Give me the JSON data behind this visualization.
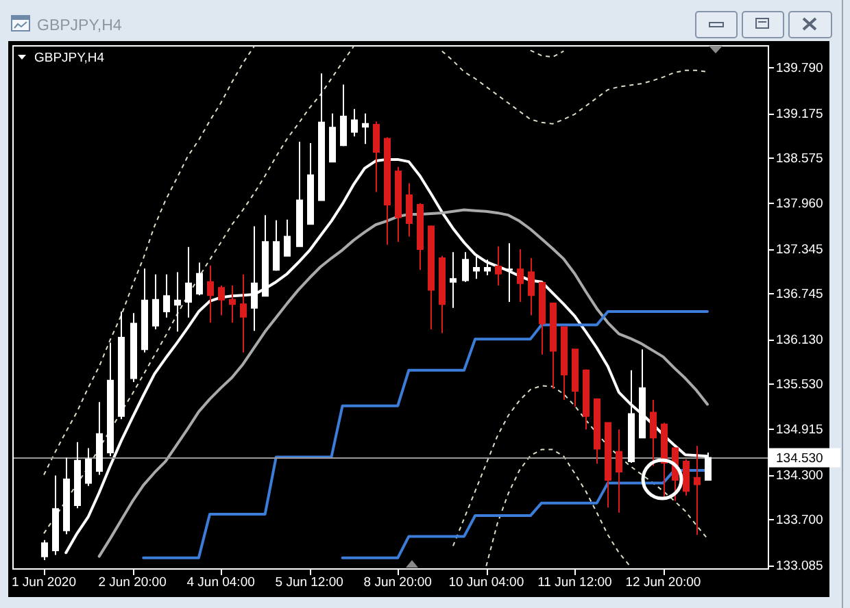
{
  "chart_data": {
    "type": "candlestick",
    "title": "GBPJPY,H4",
    "subtitle": "GBPJPY,H4",
    "categories": [
      "1 Jun 2020",
      null,
      null,
      null,
      null,
      null,
      null,
      null,
      "2 Jun 20:00",
      null,
      null,
      null,
      null,
      null,
      null,
      null,
      "4 Jun 04:00",
      null,
      null,
      null,
      null,
      null,
      null,
      null,
      "5 Jun 12:00",
      null,
      null,
      null,
      null,
      null,
      null,
      null,
      "8 Jun 20:00",
      null,
      null,
      null,
      null,
      null,
      null,
      null,
      "10 Jun 04:00",
      null,
      null,
      null,
      null,
      null,
      null,
      null,
      "11 Jun 12:00",
      null,
      null,
      null,
      null,
      null,
      null,
      null,
      "12 Jun 20:00",
      null,
      null,
      null,
      null
    ],
    "ylim": [
      133.04,
      140.09
    ],
    "yticks": [
      {
        "value": 133.085,
        "label": "133.085"
      },
      {
        "value": 133.7,
        "label": "133.700"
      },
      {
        "value": 134.3,
        "label": "134.300"
      },
      {
        "value": 134.915,
        "label": "134.915"
      },
      {
        "value": 135.53,
        "label": "135.530"
      },
      {
        "value": 136.13,
        "label": "136.130"
      },
      {
        "value": 136.745,
        "label": "136.745"
      },
      {
        "value": 137.345,
        "label": "137.345"
      },
      {
        "value": 137.96,
        "label": "137.960"
      },
      {
        "value": 138.575,
        "label": "138.575"
      },
      {
        "value": 139.175,
        "label": "139.175"
      },
      {
        "value": 139.79,
        "label": "139.790"
      }
    ],
    "ref_lines": [
      {
        "axis": "y",
        "value": 134.53,
        "label": "134.530",
        "color": "#9a9a9a"
      }
    ],
    "series": [
      {
        "type": "candlestick",
        "ohlc": [
          [
            133.2,
            133.42,
            133.15,
            133.38
          ],
          [
            133.28,
            134.29,
            133.22,
            133.84
          ],
          [
            133.55,
            134.53,
            133.5,
            134.24
          ],
          [
            133.89,
            134.74,
            133.85,
            134.49
          ],
          [
            134.19,
            134.66,
            134.15,
            134.51
          ],
          [
            134.35,
            135.28,
            134.3,
            134.85
          ],
          [
            134.6,
            136.08,
            134.55,
            135.57
          ],
          [
            135.09,
            136.5,
            135.05,
            136.15
          ],
          [
            135.6,
            136.48,
            135.55,
            136.34
          ],
          [
            135.99,
            137.08,
            135.95,
            136.65
          ],
          [
            136.31,
            137.0,
            136.26,
            136.66
          ],
          [
            136.5,
            137.0,
            136.42,
            136.71
          ],
          [
            136.59,
            137.03,
            136.23,
            136.65
          ],
          [
            136.63,
            137.37,
            136.42,
            136.88
          ],
          [
            136.74,
            137.16,
            136.72,
            137.01
          ],
          [
            136.9,
            137.12,
            136.35,
            136.72
          ],
          [
            136.82,
            136.85,
            136.45,
            136.66
          ],
          [
            136.66,
            136.85,
            136.35,
            136.6
          ],
          [
            136.6,
            137.0,
            135.95,
            136.43
          ],
          [
            136.55,
            137.65,
            136.24,
            136.88
          ],
          [
            136.71,
            137.8,
            136.7,
            137.44
          ],
          [
            137.06,
            137.73,
            137.05,
            137.44
          ],
          [
            137.25,
            137.74,
            137.24,
            137.51
          ],
          [
            137.38,
            138.79,
            137.37,
            138.0
          ],
          [
            137.68,
            138.77,
            137.67,
            138.34
          ],
          [
            138.0,
            139.71,
            137.99,
            139.05
          ],
          [
            138.52,
            139.17,
            138.51,
            138.98
          ],
          [
            138.74,
            139.56,
            138.73,
            139.13
          ],
          [
            138.92,
            139.23,
            138.86,
            139.08
          ],
          [
            138.99,
            139.17,
            138.76,
            139.03
          ],
          [
            139.02,
            139.06,
            138.11,
            138.65
          ],
          [
            138.83,
            138.85,
            137.4,
            137.94
          ],
          [
            138.39,
            138.45,
            137.44,
            137.77
          ],
          [
            138.07,
            138.23,
            137.51,
            137.69
          ],
          [
            137.94,
            137.96,
            137.06,
            137.34
          ],
          [
            137.65,
            137.66,
            136.26,
            136.79
          ],
          [
            137.22,
            137.25,
            136.21,
            136.6
          ],
          [
            136.9,
            137.3,
            136.55,
            136.94
          ],
          [
            136.92,
            137.3,
            136.9,
            137.2
          ],
          [
            137.05,
            137.25,
            136.94,
            137.09
          ],
          [
            137.05,
            137.2,
            136.99,
            137.09
          ],
          [
            137.11,
            137.38,
            136.85,
            137.01
          ],
          [
            137.06,
            137.42,
            136.63,
            137.07
          ],
          [
            137.07,
            137.34,
            136.63,
            136.88
          ],
          [
            137.03,
            137.22,
            136.45,
            136.72
          ],
          [
            136.89,
            136.9,
            135.92,
            136.34
          ],
          [
            136.61,
            136.62,
            135.46,
            135.97
          ],
          [
            136.29,
            136.3,
            135.31,
            135.65
          ],
          [
            135.99,
            136.0,
            135.22,
            135.43
          ],
          [
            135.71,
            135.72,
            134.91,
            135.09
          ],
          [
            135.32,
            135.33,
            134.45,
            134.65
          ],
          [
            135.0,
            135.01,
            133.86,
            134.23
          ],
          [
            134.61,
            134.91,
            133.79,
            134.34
          ],
          [
            134.48,
            135.71,
            134.46,
            135.12
          ],
          [
            134.8,
            135.99,
            134.79,
            135.47
          ],
          [
            135.14,
            135.31,
            134.42,
            134.8
          ],
          [
            134.98,
            135.0,
            133.98,
            134.46
          ],
          [
            134.66,
            134.67,
            133.95,
            134.23
          ],
          [
            134.48,
            134.51,
            134.02,
            134.08
          ],
          [
            134.26,
            134.69,
            133.49,
            134.17
          ],
          [
            134.23,
            134.6,
            134.22,
            134.53
          ]
        ],
        "colors": [
          "#ffffff",
          "#ffffff",
          "#ffffff",
          "#ffffff",
          "#ffffff",
          "#ffffff",
          "#ffffff",
          "#ffffff",
          "#ffffff",
          "#ffffff",
          "#ffffff",
          "#ffffff",
          "#ffffff",
          "#ffffff",
          "#ffffff",
          "#dc1c1c",
          "#dc1c1c",
          "#dc1c1c",
          "#dc1c1c",
          "#ffffff",
          "#ffffff",
          "#ffffff",
          "#ffffff",
          "#ffffff",
          "#ffffff",
          "#ffffff",
          "#ffffff",
          "#ffffff",
          "#ffffff",
          "#ffffff",
          "#dc1c1c",
          "#dc1c1c",
          "#dc1c1c",
          "#dc1c1c",
          "#dc1c1c",
          "#dc1c1c",
          "#dc1c1c",
          "#ffffff",
          "#ffffff",
          "#ffffff",
          "#ffffff",
          "#dc1c1c",
          "#ffffff",
          "#dc1c1c",
          "#dc1c1c",
          "#dc1c1c",
          "#dc1c1c",
          "#dc1c1c",
          "#dc1c1c",
          "#dc1c1c",
          "#dc1c1c",
          "#dc1c1c",
          "#dc1c1c",
          "#ffffff",
          "#ffffff",
          "#dc1c1c",
          "#dc1c1c",
          "#dc1c1c",
          "#dc1c1c",
          "#dc1c1c",
          "#ffffff"
        ]
      },
      {
        "type": "line",
        "color": "#ffffff",
        "values": [
          null,
          null,
          133.25,
          133.51,
          133.73,
          134.06,
          134.42,
          134.76,
          135.07,
          135.37,
          135.66,
          135.87,
          136.07,
          136.28,
          136.5,
          136.64,
          136.69,
          136.71,
          136.72,
          136.73,
          136.81,
          136.9,
          137.01,
          137.16,
          137.32,
          137.52,
          137.72,
          137.95,
          138.21,
          138.43,
          138.53,
          138.55,
          138.55,
          138.52,
          138.33,
          138.09,
          137.84,
          137.62,
          137.43,
          137.27,
          137.17,
          137.11,
          137.05,
          136.98,
          136.92,
          136.9,
          136.75,
          136.6,
          136.44,
          136.23,
          136.01,
          135.76,
          135.41,
          135.26,
          135.13,
          134.99,
          134.84,
          134.7,
          134.57,
          134.56,
          134.55
        ]
      },
      {
        "type": "line",
        "color": "#a9a9a9",
        "values": [
          null,
          null,
          null,
          null,
          null,
          133.2,
          133.44,
          133.69,
          133.94,
          134.16,
          134.33,
          134.48,
          134.7,
          134.92,
          135.15,
          135.32,
          135.47,
          135.61,
          135.79,
          136.01,
          136.23,
          136.42,
          136.61,
          136.79,
          136.95,
          137.1,
          137.22,
          137.33,
          137.46,
          137.57,
          137.67,
          137.72,
          137.78,
          137.81,
          137.81,
          137.82,
          137.83,
          137.85,
          137.87,
          137.86,
          137.85,
          137.83,
          137.8,
          137.72,
          137.61,
          137.48,
          137.35,
          137.21,
          137.01,
          136.77,
          136.54,
          136.35,
          136.2,
          136.14,
          136.07,
          135.98,
          135.89,
          135.74,
          135.6,
          135.44,
          135.25
        ]
      },
      {
        "type": "line",
        "color": "#d6e2c6",
        "line_style": "dashed",
        "values": [
          134.3,
          134.6,
          134.88,
          135.15,
          135.47,
          135.76,
          136.12,
          136.45,
          136.85,
          137.22,
          137.65,
          138.0,
          138.29,
          138.59,
          138.81,
          139.07,
          139.31,
          139.59,
          139.85,
          140.07,
          null,
          null,
          null,
          null,
          null,
          null,
          null,
          null,
          null,
          null,
          null,
          null,
          null,
          null,
          null,
          null,
          null,
          null,
          null,
          null,
          null,
          null,
          null,
          null,
          140.02,
          139.95,
          139.93,
          140.01,
          null,
          null,
          null,
          null,
          null,
          null,
          null,
          null,
          null,
          null,
          null,
          null,
          null
        ]
      },
      {
        "type": "line",
        "color": "#d6e2c6",
        "line_style": "dashed",
        "values": [
          133.51,
          133.73,
          133.95,
          134.18,
          134.4,
          134.66,
          134.9,
          135.15,
          135.39,
          135.65,
          135.91,
          136.17,
          136.45,
          136.71,
          136.96,
          137.2,
          137.43,
          137.67,
          137.87,
          138.09,
          138.33,
          138.59,
          138.83,
          139.03,
          139.24,
          139.42,
          139.64,
          139.86,
          140.07,
          null,
          null,
          null,
          null,
          null,
          null,
          null,
          140.01,
          139.88,
          139.73,
          139.64,
          139.53,
          139.42,
          139.31,
          139.2,
          139.09,
          139.05,
          139.03,
          139.09,
          139.16,
          139.27,
          139.38,
          139.49,
          139.53,
          139.55,
          139.57,
          139.61,
          139.66,
          139.72,
          139.75,
          139.75,
          139.73
        ]
      },
      {
        "type": "line",
        "color": "#d6e2c6",
        "line_style": "dashed",
        "values": [
          null,
          null,
          null,
          null,
          null,
          null,
          null,
          null,
          null,
          null,
          null,
          null,
          null,
          null,
          null,
          null,
          null,
          null,
          null,
          null,
          null,
          null,
          null,
          null,
          null,
          null,
          null,
          null,
          null,
          null,
          null,
          null,
          null,
          null,
          null,
          null,
          null,
          133.34,
          133.71,
          134.08,
          134.45,
          134.82,
          135.1,
          135.3,
          135.45,
          135.5,
          135.49,
          135.39,
          135.23,
          135.04,
          134.86,
          134.69,
          134.55,
          134.42,
          134.31,
          134.2,
          134.08,
          133.95,
          133.81,
          133.62,
          133.44
        ]
      },
      {
        "type": "line",
        "color": "#d6e2c6",
        "line_style": "dashed",
        "values": [
          null,
          null,
          null,
          null,
          null,
          null,
          null,
          null,
          null,
          null,
          null,
          null,
          null,
          null,
          null,
          null,
          null,
          null,
          null,
          null,
          null,
          null,
          null,
          null,
          null,
          null,
          null,
          null,
          null,
          null,
          null,
          null,
          null,
          null,
          null,
          null,
          null,
          null,
          null,
          null,
          133.07,
          133.64,
          134.05,
          134.36,
          134.56,
          134.64,
          134.64,
          134.55,
          134.32,
          134.08,
          133.79,
          133.49,
          133.25,
          133.07,
          null,
          null,
          null,
          null,
          null,
          null,
          null
        ]
      },
      {
        "type": "line",
        "color": "#3b7dd8",
        "values": [
          null,
          null,
          null,
          null,
          null,
          null,
          null,
          null,
          null,
          133.18,
          133.18,
          133.18,
          133.18,
          133.18,
          133.18,
          133.77,
          133.77,
          133.77,
          133.77,
          133.77,
          133.77,
          134.54,
          134.54,
          134.54,
          134.54,
          134.54,
          134.54,
          135.23,
          135.23,
          135.23,
          135.23,
          135.23,
          135.23,
          135.71,
          135.71,
          135.71,
          135.71,
          135.71,
          135.71,
          136.13,
          136.13,
          136.13,
          136.13,
          136.13,
          136.13,
          136.32,
          136.32,
          136.32,
          136.32,
          136.32,
          136.32,
          136.5,
          136.5,
          136.5,
          136.5,
          136.5,
          136.5,
          136.5,
          136.5,
          136.5,
          136.5
        ]
      },
      {
        "type": "line",
        "color": "#3b7dd8",
        "values": [
          null,
          null,
          null,
          null,
          null,
          null,
          null,
          null,
          null,
          null,
          null,
          null,
          null,
          null,
          null,
          null,
          null,
          null,
          null,
          null,
          null,
          null,
          null,
          null,
          null,
          null,
          null,
          133.18,
          133.18,
          133.18,
          133.18,
          133.18,
          133.18,
          133.47,
          133.47,
          133.47,
          133.47,
          133.47,
          133.47,
          133.75,
          133.75,
          133.75,
          133.75,
          133.75,
          133.75,
          133.92,
          133.92,
          133.92,
          133.92,
          133.92,
          133.92,
          134.19,
          134.19,
          134.19,
          134.19,
          134.19,
          134.19,
          134.36,
          134.36,
          134.36,
          134.36
        ]
      }
    ]
  }
}
